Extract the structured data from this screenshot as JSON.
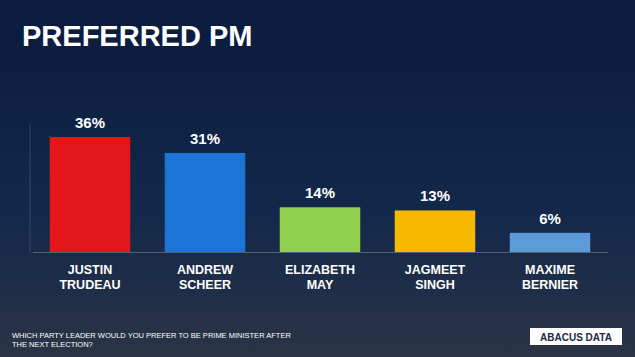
{
  "chart_data": {
    "type": "bar",
    "title": "PREFERRED PM",
    "subtitle": "WHICH PARTY LEADER WOULD YOU PREFER TO BE PRIME MINISTER AFTER THE NEXT ELECTION?",
    "source": "ABACUS DATA",
    "categories": [
      "JUSTIN TRUDEAU",
      "ANDREW SCHEER",
      "ELIZABETH MAY",
      "JAGMEET SINGH",
      "MAXIME BERNIER"
    ],
    "values": [
      36,
      31,
      14,
      13,
      6
    ],
    "value_labels": [
      "36%",
      "31%",
      "14%",
      "13%",
      "6%"
    ],
    "colors": [
      "#e3161b",
      "#1b74d6",
      "#8fd14f",
      "#f7b900",
      "#5a9bd8"
    ],
    "ylim": [
      0,
      40
    ],
    "grid": false,
    "data_labels": true,
    "tick_labels": false
  }
}
